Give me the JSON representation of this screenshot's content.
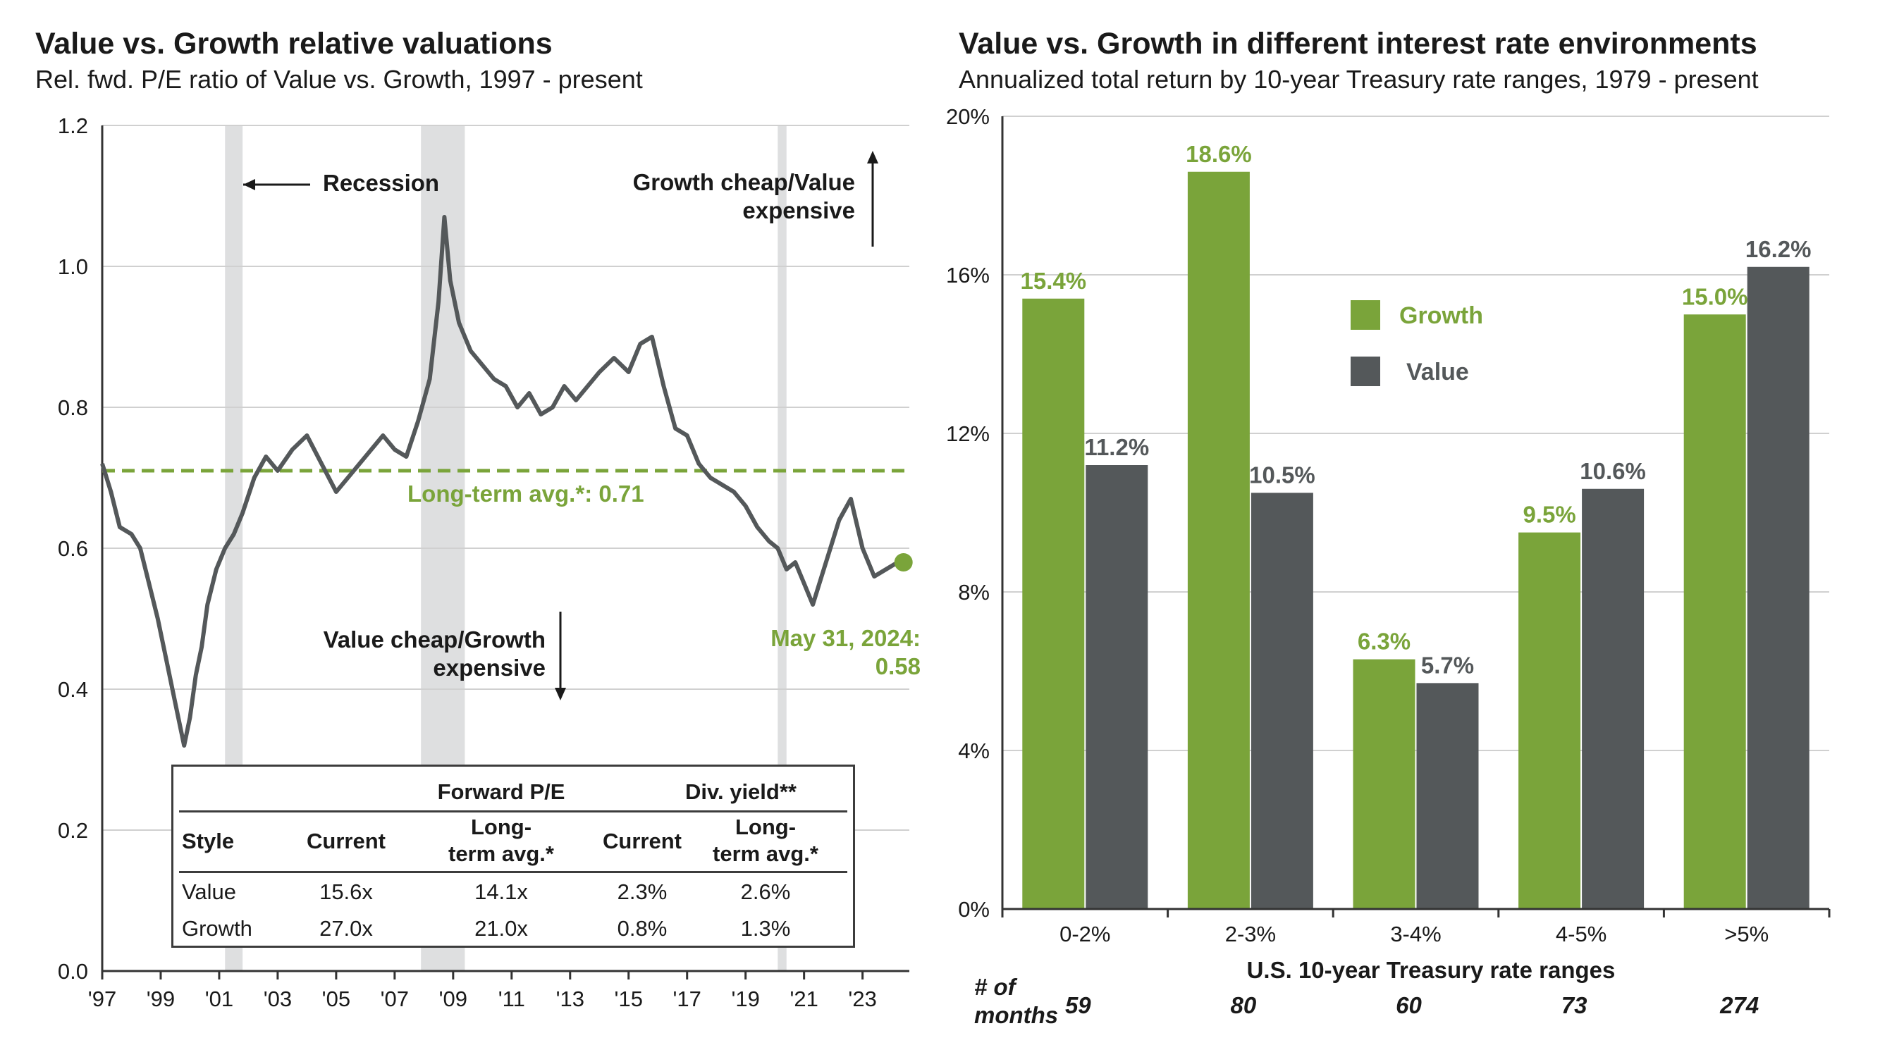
{
  "left_panel": {
    "title": "Value vs. Growth relative valuations",
    "subtitle": "Rel. fwd. P/E ratio of Value vs. Growth, 1997 - present",
    "annotations": {
      "recession": "Recession",
      "growth_cheap_1": "Growth cheap/Value",
      "growth_cheap_2": "expensive",
      "value_cheap_1": "Value cheap/Growth",
      "value_cheap_2": "expensive",
      "long_term_avg": "Long-term avg.*:  0.71",
      "latest_date": "May 31, 2024:",
      "latest_value": "0.58"
    },
    "table": {
      "group_headers": {
        "pe": "Forward P/E",
        "div": "Div. yield**"
      },
      "col_style": "Style",
      "col_current": "Current",
      "col_lt_1": "Long-",
      "col_lt_2": "term avg.*",
      "rows": [
        {
          "style": "Value",
          "pe_current": "15.6x",
          "pe_avg": "14.1x",
          "div_current": "2.3%",
          "div_avg": "2.6%"
        },
        {
          "style": "Growth",
          "pe_current": "27.0x",
          "pe_avg": "21.0x",
          "div_current": "0.8%",
          "div_avg": "1.3%"
        }
      ]
    }
  },
  "right_panel": {
    "title": "Value vs. Growth in different interest rate environments",
    "subtitle": "Annualized total return by 10-year Treasury rate ranges, 1979 - present",
    "months_label_1": "# of",
    "months_label_2": "months",
    "months": [
      "59",
      "80",
      "60",
      "73",
      "274"
    ]
  },
  "colors": {
    "growth": "#7aa43a",
    "value": "#54585a",
    "recession": "#dedfe0",
    "grid": "#d0d0d0",
    "axis": "#333333"
  },
  "chart_data": [
    {
      "type": "line",
      "title": "Value vs. Growth relative valuations",
      "subtitle": "Rel. fwd. P/E ratio of Value vs. Growth, 1997 - present",
      "x_tick_labels": [
        "'97",
        "'99",
        "'01",
        "'03",
        "'05",
        "'07",
        "'09",
        "'11",
        "'13",
        "'15",
        "'17",
        "'19",
        "'21",
        "'23"
      ],
      "x_tick_years": [
        1997,
        1999,
        2001,
        2003,
        2005,
        2007,
        2009,
        2011,
        2013,
        2015,
        2017,
        2019,
        2021,
        2023
      ],
      "xlim": [
        1997,
        2024.6
      ],
      "ylim": [
        0,
        1.2
      ],
      "y_ticks": [
        0,
        0.2,
        0.4,
        0.6,
        0.8,
        1.0,
        1.2
      ],
      "y_tick_labels": [
        "0.0",
        "0.2",
        "0.4",
        "0.6",
        "0.8",
        "1.0",
        "1.2"
      ],
      "grid": "horizontal",
      "recessions": [
        [
          2001.2,
          2001.8
        ],
        [
          2007.9,
          2009.4
        ],
        [
          2020.1,
          2020.4
        ]
      ],
      "long_term_avg": 0.71,
      "latest": {
        "x": 2024.4,
        "y": 0.58
      },
      "x": [
        1997.0,
        1997.3,
        1997.6,
        1998.0,
        1998.3,
        1998.6,
        1998.9,
        1999.2,
        1999.5,
        1999.8,
        2000.0,
        2000.2,
        2000.4,
        2000.6,
        2000.9,
        2001.2,
        2001.5,
        2001.8,
        2002.2,
        2002.6,
        2003.0,
        2003.5,
        2004.0,
        2004.5,
        2005.0,
        2005.4,
        2005.8,
        2006.2,
        2006.6,
        2007.0,
        2007.4,
        2007.8,
        2008.2,
        2008.5,
        2008.7,
        2008.9,
        2009.2,
        2009.6,
        2010.0,
        2010.4,
        2010.8,
        2011.2,
        2011.6,
        2012.0,
        2012.4,
        2012.8,
        2013.2,
        2013.6,
        2014.0,
        2014.5,
        2015.0,
        2015.4,
        2015.8,
        2016.2,
        2016.6,
        2017.0,
        2017.4,
        2017.8,
        2018.2,
        2018.6,
        2019.0,
        2019.4,
        2019.8,
        2020.1,
        2020.4,
        2020.7,
        2021.0,
        2021.3,
        2021.6,
        2021.9,
        2022.2,
        2022.6,
        2023.0,
        2023.4,
        2023.8,
        2024.2,
        2024.4
      ],
      "y": [
        0.72,
        0.68,
        0.63,
        0.62,
        0.6,
        0.55,
        0.5,
        0.44,
        0.38,
        0.32,
        0.36,
        0.42,
        0.46,
        0.52,
        0.57,
        0.6,
        0.62,
        0.65,
        0.7,
        0.73,
        0.71,
        0.74,
        0.76,
        0.72,
        0.68,
        0.7,
        0.72,
        0.74,
        0.76,
        0.74,
        0.73,
        0.78,
        0.84,
        0.95,
        1.07,
        0.98,
        0.92,
        0.88,
        0.86,
        0.84,
        0.83,
        0.8,
        0.82,
        0.79,
        0.8,
        0.83,
        0.81,
        0.83,
        0.85,
        0.87,
        0.85,
        0.89,
        0.9,
        0.83,
        0.77,
        0.76,
        0.72,
        0.7,
        0.69,
        0.68,
        0.66,
        0.63,
        0.61,
        0.6,
        0.57,
        0.58,
        0.55,
        0.52,
        0.56,
        0.6,
        0.64,
        0.67,
        0.6,
        0.56,
        0.57,
        0.58,
        0.58
      ]
    },
    {
      "type": "bar",
      "title": "Value vs. Growth in different interest rate environments",
      "subtitle": "Annualized total return by 10-year Treasury rate ranges, 1979 - present",
      "categories": [
        "0-2%",
        "2-3%",
        "3-4%",
        "4-5%",
        ">5%"
      ],
      "xlabel": "U.S. 10-year Treasury rate ranges",
      "ylim": [
        0,
        20
      ],
      "y_ticks": [
        0,
        4,
        8,
        12,
        16,
        20
      ],
      "y_tick_labels": [
        "0%",
        "4%",
        "8%",
        "12%",
        "16%",
        "20%"
      ],
      "grid": "horizontal",
      "legend_position": "upper-left",
      "series": [
        {
          "name": "Growth",
          "values": [
            15.4,
            18.6,
            6.3,
            9.5,
            15.0
          ],
          "labels": [
            "15.4%",
            "18.6%",
            "6.3%",
            "9.5%",
            "15.0%"
          ]
        },
        {
          "name": "Value",
          "values": [
            11.2,
            10.5,
            5.7,
            10.6,
            16.2
          ],
          "labels": [
            "11.2%",
            "10.5%",
            "5.7%",
            "10.6%",
            "16.2%"
          ]
        }
      ]
    }
  ]
}
